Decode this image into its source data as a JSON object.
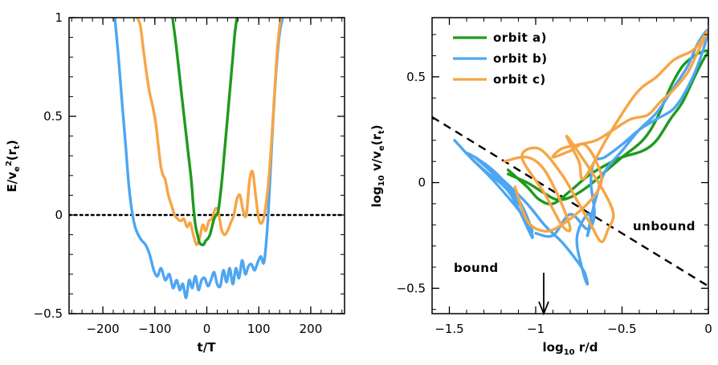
{
  "chart_data": [
    {
      "type": "line",
      "xlabel": "t/T",
      "ylabel": "E/v_e^2(r_t)",
      "xlim": [
        -265,
        265
      ],
      "ylim": [
        -0.5,
        1
      ],
      "xticks": [
        -200,
        -100,
        0,
        100,
        200
      ],
      "yticks": [
        -0.5,
        0,
        0.5,
        1
      ],
      "xtick_labels": [
        "−200",
        "−100",
        "0",
        "100",
        "200"
      ],
      "ytick_labels": [
        "−0.5",
        "0",
        "0.5",
        "1"
      ],
      "reference_line": {
        "y": 0,
        "style": "dotted"
      },
      "series": [
        {
          "name": "orbit b)",
          "color": "#4da6f2",
          "x": [
            -177,
            -170,
            -163,
            -156,
            -150,
            -144,
            -138,
            -132,
            -125,
            -118,
            -110,
            -102,
            -95,
            -88,
            -80,
            -72,
            -65,
            -58,
            -52,
            -46,
            -40,
            -34,
            -28,
            -22,
            -16,
            -10,
            -4,
            2,
            8,
            14,
            20,
            26,
            32,
            38,
            44,
            50,
            56,
            62,
            68,
            74,
            80,
            86,
            92,
            98,
            104,
            110,
            116,
            122,
            128,
            134,
            140,
            146
          ],
          "y": [
            1.0,
            0.8,
            0.57,
            0.35,
            0.15,
            0.02,
            -0.06,
            -0.1,
            -0.13,
            -0.15,
            -0.2,
            -0.28,
            -0.31,
            -0.27,
            -0.33,
            -0.3,
            -0.37,
            -0.33,
            -0.38,
            -0.35,
            -0.42,
            -0.33,
            -0.37,
            -0.31,
            -0.38,
            -0.33,
            -0.32,
            -0.36,
            -0.33,
            -0.29,
            -0.35,
            -0.36,
            -0.28,
            -0.34,
            -0.27,
            -0.35,
            -0.27,
            -0.32,
            -0.23,
            -0.3,
            -0.26,
            -0.25,
            -0.28,
            -0.24,
            -0.21,
            -0.24,
            -0.08,
            0.2,
            0.5,
            0.75,
            0.92,
            1.0
          ]
        },
        {
          "name": "orbit c)",
          "color": "#f7a545",
          "x": [
            -134,
            -128,
            -122,
            -116,
            -110,
            -104,
            -98,
            -92,
            -88,
            -84,
            -80,
            -74,
            -68,
            -62,
            -56,
            -50,
            -44,
            -38,
            -32,
            -26,
            -20,
            -14,
            -8,
            -2,
            4,
            10,
            16,
            22,
            28,
            34,
            40,
            46,
            52,
            58,
            64,
            70,
            76,
            82,
            88,
            94,
            100,
            106,
            112,
            118,
            124,
            130,
            136,
            142
          ],
          "y": [
            1.0,
            0.96,
            0.84,
            0.72,
            0.62,
            0.55,
            0.46,
            0.32,
            0.24,
            0.2,
            0.18,
            0.1,
            0.05,
            0.0,
            -0.02,
            -0.03,
            -0.02,
            -0.06,
            -0.04,
            -0.1,
            -0.15,
            -0.12,
            -0.05,
            -0.08,
            -0.03,
            -0.02,
            0.03,
            0.02,
            -0.07,
            -0.1,
            -0.08,
            -0.04,
            0.0,
            0.08,
            0.1,
            0.02,
            0.0,
            0.17,
            0.22,
            0.1,
            -0.02,
            -0.04,
            0.02,
            0.15,
            0.35,
            0.6,
            0.85,
            1.0
          ]
        },
        {
          "name": "orbit a)",
          "color": "#1e9a1e",
          "x": [
            -66,
            -60,
            -54,
            -48,
            -42,
            -36,
            -30,
            -26,
            -22,
            -18,
            -14,
            -10,
            -6,
            -2,
            2,
            6,
            10,
            14,
            18,
            22,
            26,
            30,
            34,
            38,
            42,
            46,
            50,
            54,
            58
          ],
          "y": [
            1.0,
            0.88,
            0.74,
            0.6,
            0.46,
            0.32,
            0.18,
            0.05,
            -0.05,
            -0.1,
            -0.14,
            -0.15,
            -0.15,
            -0.13,
            -0.12,
            -0.1,
            -0.06,
            -0.02,
            0.0,
            0.02,
            0.1,
            0.2,
            0.32,
            0.44,
            0.56,
            0.68,
            0.8,
            0.92,
            1.0
          ]
        }
      ]
    },
    {
      "type": "line",
      "xlabel": "log10 r/d",
      "ylabel": "log10 v/v_e(r_t)",
      "xlim": [
        -1.6,
        0
      ],
      "ylim": [
        -0.62,
        0.78
      ],
      "xticks": [
        -1.5,
        -1,
        -0.5,
        0
      ],
      "yticks": [
        -0.5,
        0,
        0.5
      ],
      "xtick_labels": [
        "−1.5",
        "−1",
        "−0.5",
        "0"
      ],
      "ytick_labels": [
        "−0.5",
        "0",
        "0.5"
      ],
      "reference_line": {
        "x": [
          -1.6,
          0
        ],
        "y": [
          0.31,
          -0.49
        ],
        "style": "dashed"
      },
      "annotations": [
        {
          "text": "unbound",
          "x": -0.32,
          "y": -0.37
        },
        {
          "text": "bound",
          "x": -1.48,
          "y": -0.75
        },
        {
          "text": "arrow",
          "x": -1.0,
          "y": -0.62
        }
      ],
      "legend_position": "top-left",
      "series": [
        {
          "name": "orbit a)",
          "color": "#1e9a1e",
          "x": [
            -1.16,
            -1.05,
            -0.95,
            -0.88,
            -0.8,
            -0.7,
            -0.6,
            -0.5,
            -0.38,
            -0.3,
            -0.22,
            -0.15,
            -0.08,
            -0.03,
            0.0,
            -0.03,
            -0.08,
            -0.15,
            -0.22,
            -0.3,
            -0.38,
            -0.5,
            -0.6,
            -0.7,
            -0.8,
            -0.9,
            -0.98,
            -1.05,
            -1.16
          ],
          "y": [
            0.04,
            0.0,
            -0.05,
            -0.08,
            -0.07,
            -0.02,
            0.05,
            0.12,
            0.2,
            0.3,
            0.45,
            0.55,
            0.6,
            0.62,
            0.62,
            0.58,
            0.5,
            0.38,
            0.3,
            0.2,
            0.15,
            0.12,
            0.08,
            0.03,
            -0.04,
            -0.1,
            -0.08,
            -0.02,
            0.06
          ]
        },
        {
          "name": "orbit b)",
          "color": "#4da6f2",
          "x": [
            -1.47,
            -1.38,
            -1.28,
            -1.18,
            -1.08,
            -1.02,
            -1.1,
            -1.25,
            -1.4,
            -1.3,
            -1.15,
            -1.02,
            -1.08,
            -1.22,
            -1.35,
            -1.2,
            -1.05,
            -0.95,
            -0.85,
            -0.78,
            -0.72,
            -0.7,
            -0.72,
            -0.76,
            -0.75,
            -0.7,
            -0.68,
            -0.7,
            -0.66,
            -0.6,
            -0.5,
            -0.4,
            -0.3,
            -0.2,
            -0.12,
            -0.06,
            0.0,
            -0.05,
            -0.12,
            -0.2,
            -0.3,
            -0.4,
            -0.5,
            -0.6,
            -0.66,
            -0.68,
            -0.66,
            -0.7,
            -0.8,
            -0.9,
            -1.0
          ],
          "y": [
            0.2,
            0.12,
            0.04,
            -0.05,
            -0.15,
            -0.23,
            -0.08,
            0.06,
            0.14,
            0.06,
            -0.05,
            -0.26,
            -0.12,
            0.02,
            0.12,
            0.02,
            -0.1,
            -0.2,
            -0.28,
            -0.35,
            -0.42,
            -0.48,
            -0.44,
            -0.3,
            -0.22,
            -0.15,
            -0.18,
            -0.25,
            -0.1,
            0.05,
            0.15,
            0.25,
            0.33,
            0.45,
            0.55,
            0.66,
            0.72,
            0.58,
            0.45,
            0.35,
            0.3,
            0.25,
            0.18,
            0.12,
            0.1,
            0.0,
            -0.15,
            -0.22,
            -0.15,
            -0.25,
            -0.24
          ]
        },
        {
          "name": "orbit c)",
          "color": "#f7a545",
          "x": [
            -1.18,
            -1.05,
            -0.95,
            -0.85,
            -0.8,
            -0.85,
            -0.95,
            -1.08,
            -0.98,
            -0.85,
            -0.75,
            -0.68,
            -0.62,
            -0.58,
            -0.55,
            -0.6,
            -0.7,
            -0.82,
            -0.75,
            -0.72,
            -0.58,
            -0.42,
            -0.3,
            -0.2,
            -0.1,
            -0.05,
            0.0,
            -0.06,
            -0.12,
            -0.2,
            -0.28,
            -0.35,
            -0.45,
            -0.55,
            -0.65,
            -0.75,
            -0.85,
            -0.9,
            -0.8,
            -0.72,
            -0.65,
            -0.62,
            -0.7,
            -0.85,
            -0.95,
            -1.05,
            -1.12
          ],
          "y": [
            0.1,
            0.12,
            0.06,
            -0.1,
            -0.22,
            -0.2,
            -0.05,
            0.12,
            0.16,
            0.04,
            -0.1,
            -0.2,
            -0.28,
            -0.22,
            -0.15,
            -0.05,
            0.08,
            0.22,
            0.1,
            0.02,
            0.22,
            0.42,
            0.5,
            0.58,
            0.62,
            0.66,
            0.72,
            0.62,
            0.52,
            0.44,
            0.38,
            0.32,
            0.3,
            0.25,
            0.2,
            0.18,
            0.16,
            0.12,
            0.15,
            0.18,
            0.1,
            0.0,
            -0.1,
            -0.2,
            -0.23,
            -0.18,
            -0.02
          ]
        }
      ]
    }
  ]
}
